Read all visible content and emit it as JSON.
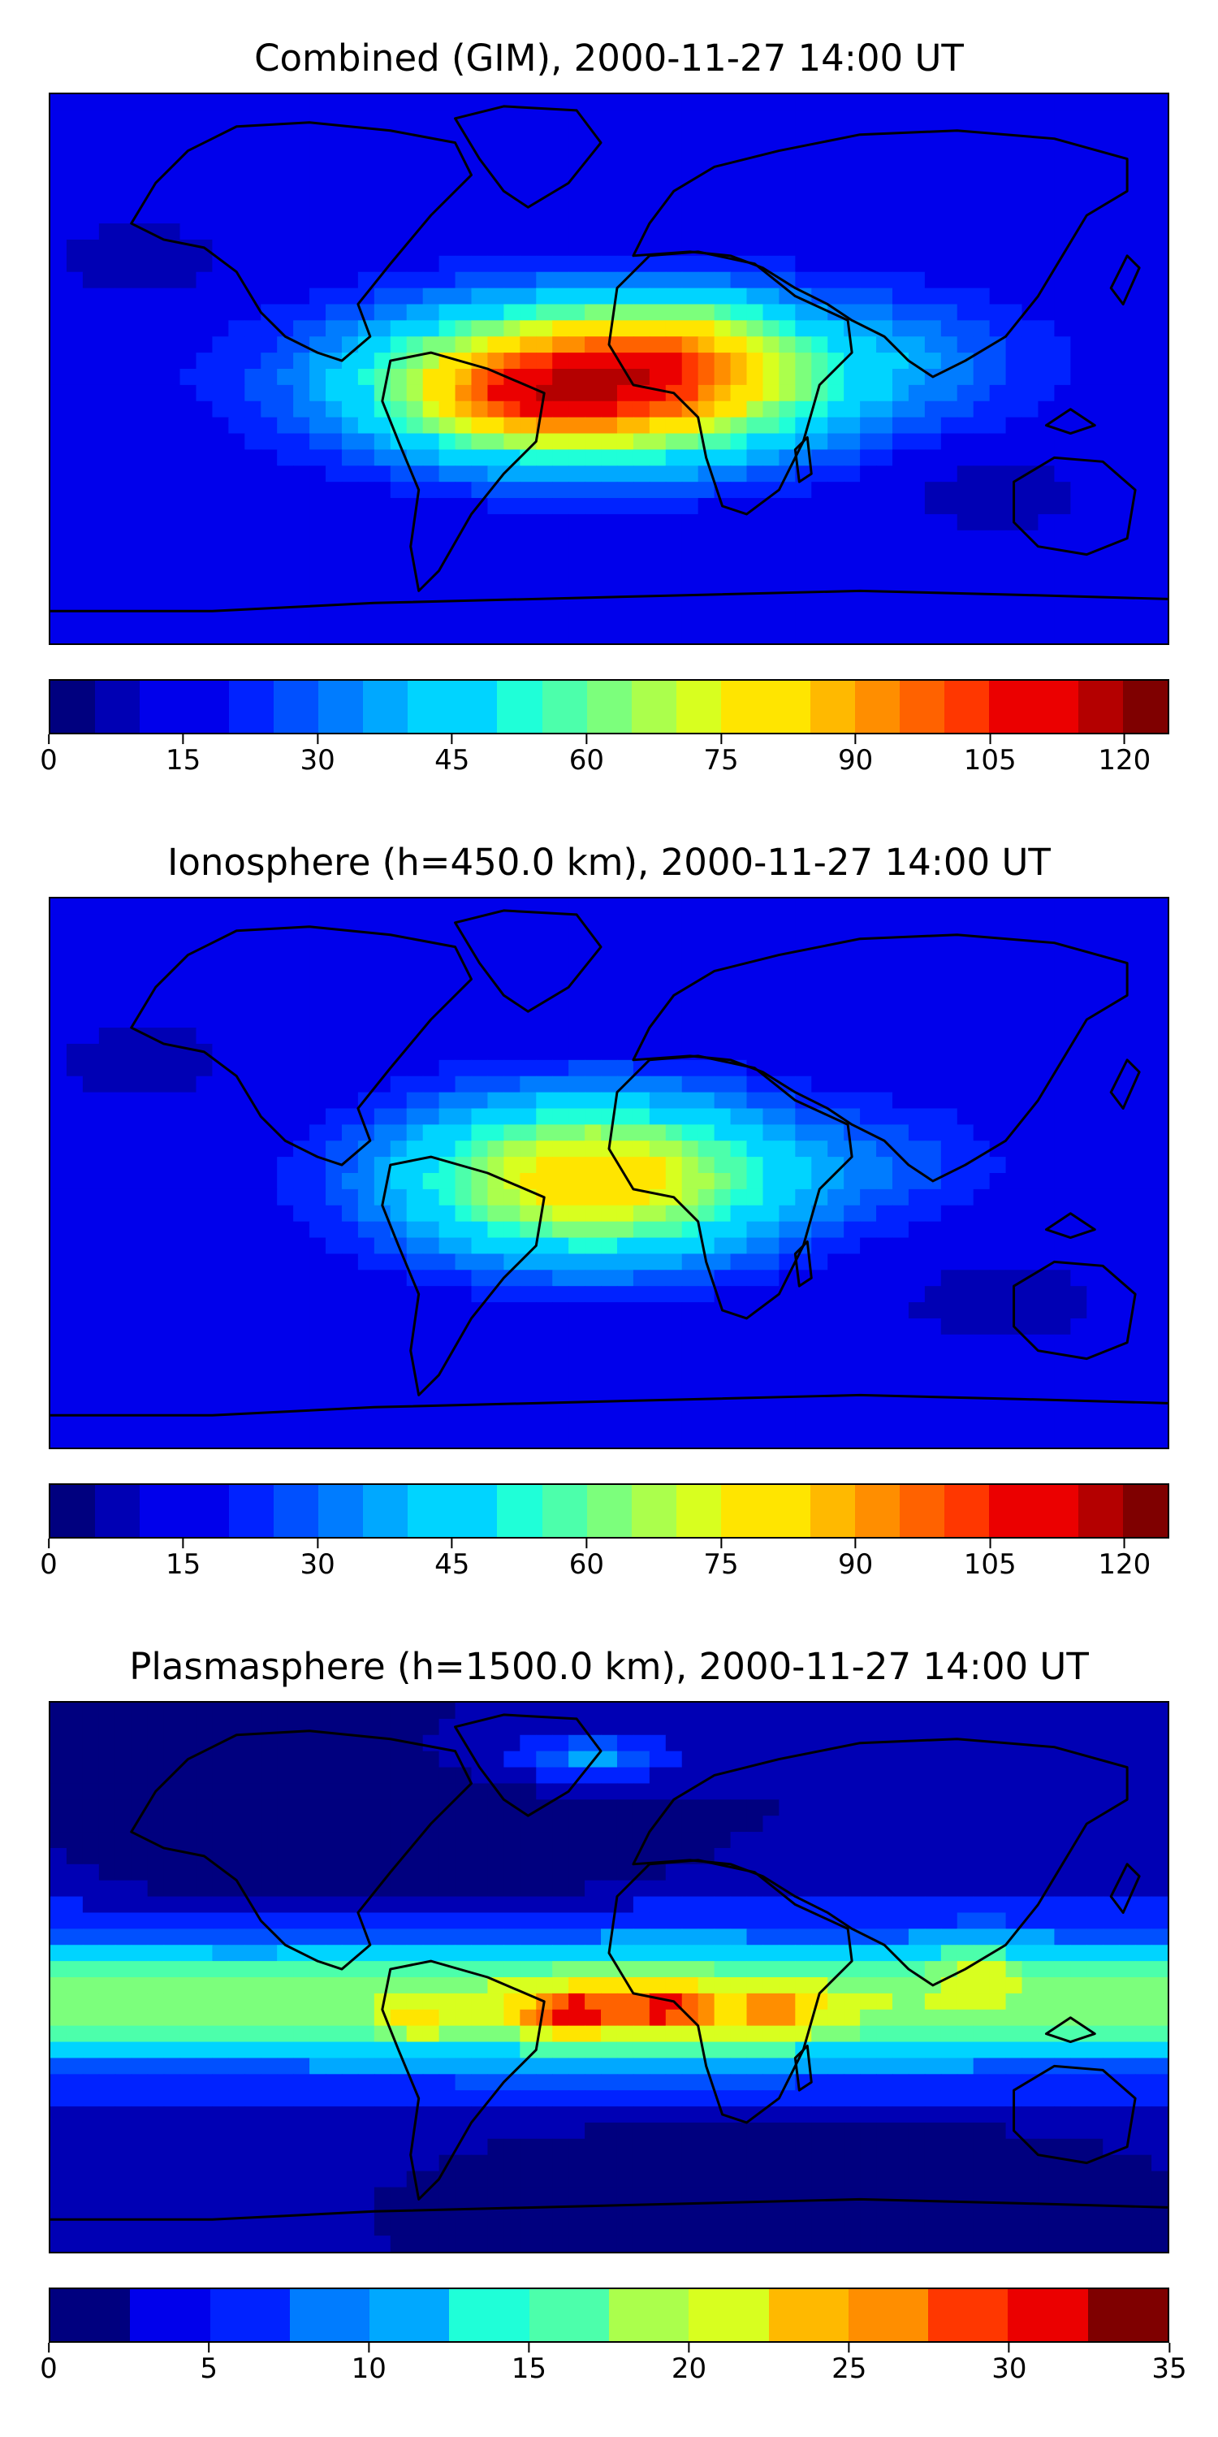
{
  "panels": [
    {
      "title": "Combined (GIM), 2000-11-27 14:00 UT",
      "colorbar": {
        "min": 0,
        "max": 125,
        "step": 5,
        "tick_labels": [
          "0",
          "15",
          "30",
          "45",
          "60",
          "75",
          "90",
          "105",
          "120"
        ],
        "tick_values": [
          0,
          15,
          30,
          45,
          60,
          75,
          90,
          105,
          120
        ]
      },
      "field_max": 125
    },
    {
      "title": "Ionosphere  (h=450.0 km), 2000-11-27 14:00 UT",
      "colorbar": {
        "min": 0,
        "max": 125,
        "step": 5,
        "tick_labels": [
          "0",
          "15",
          "30",
          "45",
          "60",
          "75",
          "90",
          "105",
          "120"
        ],
        "tick_values": [
          0,
          15,
          30,
          45,
          60,
          75,
          90,
          105,
          120
        ]
      },
      "field_max": 90
    },
    {
      "title": "Plasmasphere (h=1500.0 km), 2000-11-27 14:00 UT",
      "colorbar": {
        "min": 0,
        "max": 35,
        "step": 2.5,
        "tick_labels": [
          "0",
          "5",
          "10",
          "15",
          "20",
          "25",
          "30",
          "35"
        ],
        "tick_values": [
          0,
          5,
          10,
          15,
          20,
          25,
          30,
          35
        ]
      },
      "field_max": 32
    }
  ],
  "colormap": [
    "#00007f",
    "#0000b4",
    "#0000eb",
    "#0022ff",
    "#0050ff",
    "#007cff",
    "#00a8ff",
    "#00d4ff",
    "#1fffd8",
    "#4cffab",
    "#7cff7c",
    "#abff4c",
    "#d8ff1f",
    "#ffe500",
    "#ffb900",
    "#ff8e00",
    "#ff6200",
    "#ff3700",
    "#eb0000",
    "#b40000",
    "#7f0000"
  ]
}
